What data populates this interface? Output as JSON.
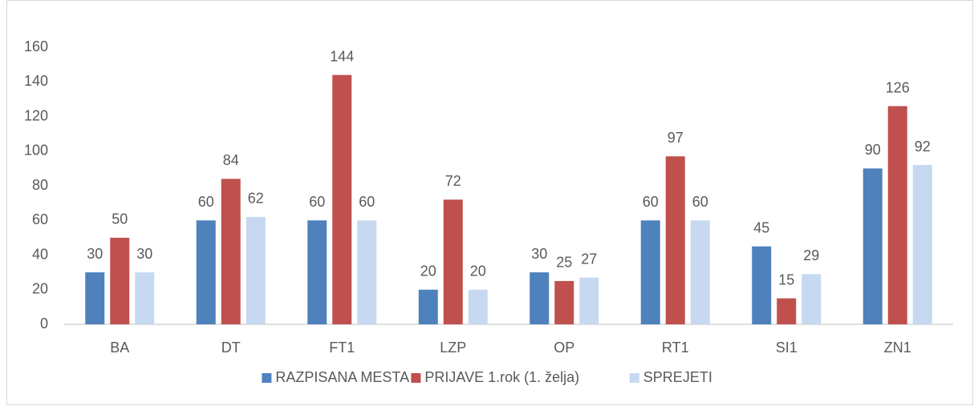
{
  "chart_data": {
    "type": "bar",
    "categories": [
      "BA",
      "DT",
      "FT1",
      "LZP",
      "OP",
      "RT1",
      "SI1",
      "ZN1"
    ],
    "series": [
      {
        "name": "RAZPISANA MESTA",
        "color": "#4f81bd",
        "values": [
          30,
          60,
          60,
          20,
          30,
          60,
          45,
          90
        ]
      },
      {
        "name": "PRIJAVE 1.rok (1. želja)",
        "color": "#c0504d",
        "values": [
          50,
          84,
          144,
          72,
          25,
          97,
          15,
          126
        ]
      },
      {
        "name": "SPREJETI",
        "color": "#c6d9f0",
        "values": [
          30,
          62,
          60,
          20,
          27,
          60,
          29,
          92
        ]
      }
    ],
    "ylim": [
      0,
      160
    ],
    "yticks": [
      0,
      20,
      40,
      60,
      80,
      100,
      120,
      140,
      160
    ],
    "grid": false,
    "legend": "bottom"
  }
}
